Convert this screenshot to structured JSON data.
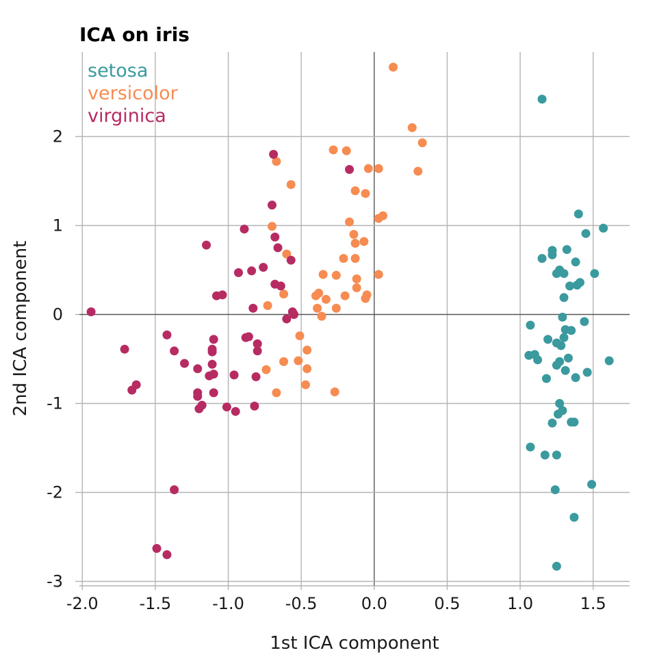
{
  "chart_data": {
    "type": "scatter",
    "title": "ICA on iris",
    "xlabel": "1st ICA component",
    "ylabel": "2nd ICA component",
    "xlim": [
      -2.02,
      1.75
    ],
    "ylim": [
      -3.05,
      2.95
    ],
    "x_ticks": [
      -2.0,
      -1.5,
      -1.0,
      -0.5,
      0.0,
      0.5,
      1.0,
      1.5
    ],
    "x_tick_labels": [
      "-2.0",
      "-1.5",
      "-1.0",
      "-0.5",
      "0.0",
      "0.5",
      "1.0",
      "1.5"
    ],
    "y_ticks": [
      -3,
      -2,
      -1,
      0,
      1,
      2
    ],
    "y_tick_labels": [
      "-3",
      "-2",
      "-1",
      "0",
      "1",
      "2"
    ],
    "grid": true,
    "legend_position": "top-left",
    "series": [
      {
        "name": "setosa",
        "color": "#3a9a9e",
        "points": [
          [
            1.15,
            2.42
          ],
          [
            1.4,
            1.13
          ],
          [
            1.57,
            0.97
          ],
          [
            1.45,
            0.91
          ],
          [
            1.22,
            0.72
          ],
          [
            1.32,
            0.73
          ],
          [
            1.15,
            0.63
          ],
          [
            1.22,
            0.67
          ],
          [
            1.38,
            0.59
          ],
          [
            1.25,
            0.46
          ],
          [
            1.27,
            0.5
          ],
          [
            1.3,
            0.46
          ],
          [
            1.51,
            0.46
          ],
          [
            1.41,
            0.36
          ],
          [
            1.34,
            0.32
          ],
          [
            1.39,
            0.33
          ],
          [
            1.3,
            0.19
          ],
          [
            1.29,
            -0.03
          ],
          [
            1.44,
            -0.08
          ],
          [
            1.07,
            -0.12
          ],
          [
            1.31,
            -0.17
          ],
          [
            1.35,
            -0.18
          ],
          [
            1.3,
            -0.26
          ],
          [
            1.19,
            -0.28
          ],
          [
            1.25,
            -0.32
          ],
          [
            1.28,
            -0.35
          ],
          [
            1.06,
            -0.46
          ],
          [
            1.1,
            -0.45
          ],
          [
            1.12,
            -0.51
          ],
          [
            1.33,
            -0.49
          ],
          [
            1.27,
            -0.53
          ],
          [
            1.61,
            -0.52
          ],
          [
            1.25,
            -0.57
          ],
          [
            1.46,
            -0.65
          ],
          [
            1.31,
            -0.63
          ],
          [
            1.38,
            -0.71
          ],
          [
            1.18,
            -0.72
          ],
          [
            1.27,
            -1.0
          ],
          [
            1.29,
            -1.08
          ],
          [
            1.26,
            -1.12
          ],
          [
            1.35,
            -1.21
          ],
          [
            1.37,
            -1.21
          ],
          [
            1.22,
            -1.22
          ],
          [
            1.07,
            -1.49
          ],
          [
            1.17,
            -1.58
          ],
          [
            1.25,
            -1.58
          ],
          [
            1.49,
            -1.91
          ],
          [
            1.24,
            -1.97
          ],
          [
            1.37,
            -2.28
          ],
          [
            1.25,
            -2.83
          ]
        ]
      },
      {
        "name": "versicolor",
        "color": "#f68c52",
        "points": [
          [
            0.13,
            2.78
          ],
          [
            0.26,
            2.1
          ],
          [
            0.33,
            1.93
          ],
          [
            -0.28,
            1.85
          ],
          [
            -0.19,
            1.84
          ],
          [
            -0.67,
            1.72
          ],
          [
            0.03,
            1.64
          ],
          [
            -0.04,
            1.64
          ],
          [
            0.3,
            1.61
          ],
          [
            -0.57,
            1.46
          ],
          [
            -0.13,
            1.39
          ],
          [
            -0.06,
            1.36
          ],
          [
            0.06,
            1.11
          ],
          [
            0.03,
            1.08
          ],
          [
            -0.7,
            0.99
          ],
          [
            -0.17,
            1.04
          ],
          [
            -0.14,
            0.9
          ],
          [
            -0.13,
            0.8
          ],
          [
            -0.07,
            0.82
          ],
          [
            -0.6,
            0.68
          ],
          [
            -0.21,
            0.63
          ],
          [
            -0.13,
            0.63
          ],
          [
            -0.35,
            0.45
          ],
          [
            -0.26,
            0.44
          ],
          [
            0.03,
            0.45
          ],
          [
            -0.12,
            0.4
          ],
          [
            -0.12,
            0.3
          ],
          [
            -0.4,
            0.21
          ],
          [
            -0.38,
            0.24
          ],
          [
            -0.33,
            0.17
          ],
          [
            -0.2,
            0.21
          ],
          [
            -0.06,
            0.18
          ],
          [
            -0.05,
            0.22
          ],
          [
            -0.62,
            0.23
          ],
          [
            -0.73,
            0.1
          ],
          [
            -0.39,
            0.07
          ],
          [
            -0.26,
            0.07
          ],
          [
            -0.36,
            -0.02
          ],
          [
            -0.51,
            -0.24
          ],
          [
            -0.8,
            -0.33
          ],
          [
            -0.46,
            -0.4
          ],
          [
            -0.62,
            -0.53
          ],
          [
            -0.52,
            -0.52
          ],
          [
            -0.46,
            -0.61
          ],
          [
            -0.74,
            -0.62
          ],
          [
            -0.47,
            -0.79
          ],
          [
            -0.67,
            -0.88
          ],
          [
            -0.27,
            -0.87
          ]
        ]
      },
      {
        "name": "virginica",
        "color": "#b72b63",
        "points": [
          [
            -0.69,
            1.8
          ],
          [
            -0.17,
            1.63
          ],
          [
            -0.7,
            1.23
          ],
          [
            -0.89,
            0.96
          ],
          [
            -0.68,
            0.87
          ],
          [
            -1.15,
            0.78
          ],
          [
            -0.66,
            0.75
          ],
          [
            -0.57,
            0.61
          ],
          [
            -0.76,
            0.53
          ],
          [
            -0.84,
            0.49
          ],
          [
            -0.93,
            0.47
          ],
          [
            -0.68,
            0.34
          ],
          [
            -0.64,
            0.32
          ],
          [
            -1.04,
            0.22
          ],
          [
            -1.08,
            0.21
          ],
          [
            -0.83,
            0.07
          ],
          [
            -0.56,
            0.03
          ],
          [
            -0.55,
            0.0
          ],
          [
            -0.6,
            -0.05
          ],
          [
            -1.94,
            0.03
          ],
          [
            -1.42,
            -0.23
          ],
          [
            -0.88,
            -0.26
          ],
          [
            -0.86,
            -0.25
          ],
          [
            -1.1,
            -0.28
          ],
          [
            -0.8,
            -0.33
          ],
          [
            -1.71,
            -0.39
          ],
          [
            -1.11,
            -0.39
          ],
          [
            -1.11,
            -0.42
          ],
          [
            -1.37,
            -0.41
          ],
          [
            -0.8,
            -0.41
          ],
          [
            -1.3,
            -0.55
          ],
          [
            -1.11,
            -0.56
          ],
          [
            -0.96,
            -0.68
          ],
          [
            -1.13,
            -0.69
          ],
          [
            -1.1,
            -0.67
          ],
          [
            -0.81,
            -0.7
          ],
          [
            -1.21,
            -0.61
          ],
          [
            -1.63,
            -0.79
          ],
          [
            -1.66,
            -0.85
          ],
          [
            -1.21,
            -0.88
          ],
          [
            -1.21,
            -0.92
          ],
          [
            -1.1,
            -0.88
          ],
          [
            -1.18,
            -1.02
          ],
          [
            -1.2,
            -1.06
          ],
          [
            -1.01,
            -1.04
          ],
          [
            -0.95,
            -1.09
          ],
          [
            -0.82,
            -1.03
          ],
          [
            -1.37,
            -1.97
          ],
          [
            -1.49,
            -2.63
          ],
          [
            -1.42,
            -2.7
          ]
        ]
      }
    ]
  }
}
